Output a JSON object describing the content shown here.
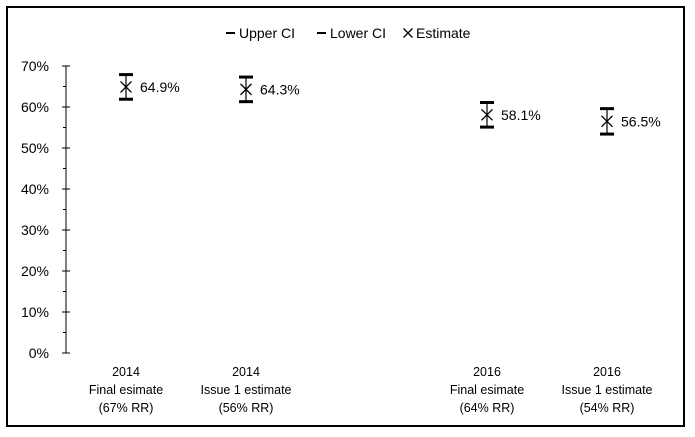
{
  "chart_data": {
    "type": "scatter",
    "title": "",
    "xlabel": "",
    "ylabel": "",
    "ylim": [
      0,
      70
    ],
    "y_ticks": [
      "0%",
      "10%",
      "20%",
      "30%",
      "40%",
      "50%",
      "60%",
      "70%"
    ],
    "legend": {
      "placement": "top-center",
      "items": [
        {
          "label": "Upper CI",
          "marker": "dash"
        },
        {
          "label": "Lower CI",
          "marker": "dash"
        },
        {
          "label": "Estimate",
          "marker": "x"
        }
      ]
    },
    "categories": [
      {
        "lines": [
          "2014",
          "Final esimate",
          "(67% RR)"
        ]
      },
      {
        "lines": [
          "2014",
          "Issue 1 estimate",
          "(56% RR)"
        ]
      },
      {
        "lines": [
          "2016",
          "Final esimate",
          "(64% RR)"
        ]
      },
      {
        "lines": [
          "2016",
          "Issue 1 estimate",
          "(54% RR)"
        ]
      }
    ],
    "points": [
      {
        "estimate": 64.9,
        "upper": 67.9,
        "lower": 61.9,
        "label": "64.9%"
      },
      {
        "estimate": 64.3,
        "upper": 67.3,
        "lower": 61.3,
        "label": "64.3%"
      },
      {
        "estimate": 58.1,
        "upper": 61.1,
        "lower": 55.1,
        "label": "58.1%"
      },
      {
        "estimate": 56.5,
        "upper": 59.6,
        "lower": 53.4,
        "label": "56.5%"
      }
    ]
  }
}
